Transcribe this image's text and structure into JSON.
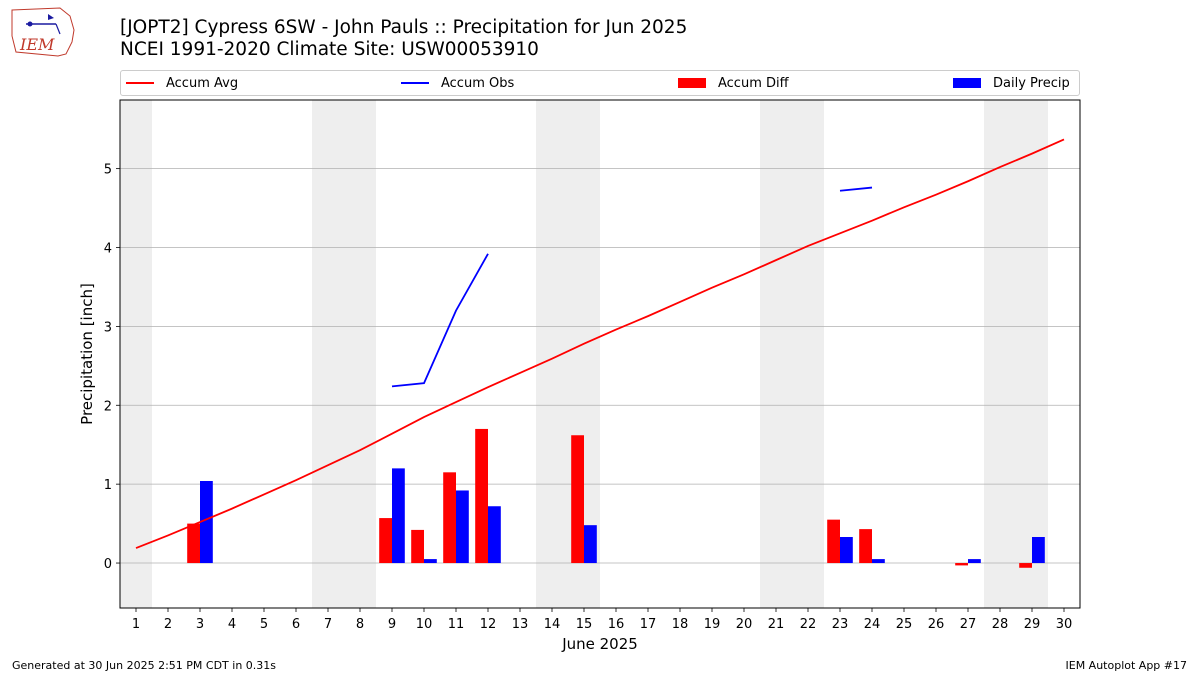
{
  "header": {
    "logo_text": "IEM",
    "title_line1": "[JOPT2] Cypress 6SW - John Pauls :: Precipitation for Jun 2025",
    "title_line2": "NCEI 1991-2020 Climate Site: USW00053910"
  },
  "legend": {
    "items": [
      {
        "label": "Accum Avg",
        "kind": "line",
        "color": "#ff0000"
      },
      {
        "label": "Accum Obs",
        "kind": "line",
        "color": "#0000ff"
      },
      {
        "label": "Accum Diff",
        "kind": "bar",
        "color": "#ff0000"
      },
      {
        "label": "Daily Precip",
        "kind": "bar",
        "color": "#0000ff"
      }
    ]
  },
  "footer": {
    "left": "Generated at 30 Jun 2025 2:51 PM CDT in 0.31s",
    "right": "IEM Autoplot App #17"
  },
  "chart_data": {
    "type": "bar",
    "xlabel": "June 2025",
    "ylabel": "Precipitation [inch]",
    "xlim": [
      0.5,
      30.5
    ],
    "ylim": [
      -0.57,
      5.87
    ],
    "yticks": [
      0,
      1,
      2,
      3,
      4,
      5
    ],
    "grid": "horizontal",
    "legend_position": "top",
    "weekend_shading_days": [
      1,
      7,
      8,
      14,
      15,
      21,
      22,
      28,
      29
    ],
    "days": [
      1,
      2,
      3,
      4,
      5,
      6,
      7,
      8,
      9,
      10,
      11,
      12,
      13,
      14,
      15,
      16,
      17,
      18,
      19,
      20,
      21,
      22,
      23,
      24,
      25,
      26,
      27,
      28,
      29,
      30
    ],
    "series": [
      {
        "name": "Accum Avg",
        "kind": "line",
        "color": "#ff0000",
        "values": [
          0.19,
          0.35,
          0.52,
          0.69,
          0.87,
          1.05,
          1.24,
          1.43,
          1.64,
          1.85,
          2.04,
          2.23,
          2.41,
          2.59,
          2.78,
          2.96,
          3.13,
          3.31,
          3.49,
          3.66,
          3.84,
          4.02,
          4.18,
          4.34,
          4.51,
          4.67,
          4.84,
          5.02,
          5.19,
          5.37
        ]
      },
      {
        "name": "Accum Obs",
        "kind": "line",
        "color": "#0000ff",
        "values": [
          null,
          null,
          null,
          null,
          null,
          null,
          null,
          null,
          2.24,
          2.28,
          3.2,
          3.92,
          null,
          null,
          null,
          null,
          null,
          null,
          null,
          null,
          null,
          null,
          4.72,
          4.76,
          null,
          null,
          null,
          null,
          null,
          null
        ]
      },
      {
        "name": "Accum Diff",
        "kind": "bar",
        "color": "#ff0000",
        "values": [
          null,
          null,
          0.5,
          null,
          null,
          null,
          null,
          null,
          0.57,
          0.42,
          1.15,
          1.7,
          null,
          null,
          1.62,
          null,
          null,
          null,
          null,
          null,
          null,
          null,
          0.55,
          0.43,
          null,
          null,
          -0.03,
          null,
          -0.06,
          null
        ]
      },
      {
        "name": "Daily Precip",
        "kind": "bar",
        "color": "#0000ff",
        "values": [
          null,
          null,
          1.04,
          null,
          null,
          null,
          null,
          null,
          1.2,
          0.05,
          0.92,
          0.72,
          null,
          null,
          0.48,
          null,
          null,
          null,
          null,
          null,
          null,
          null,
          0.33,
          0.05,
          null,
          null,
          0.05,
          null,
          0.33,
          null
        ]
      }
    ]
  }
}
